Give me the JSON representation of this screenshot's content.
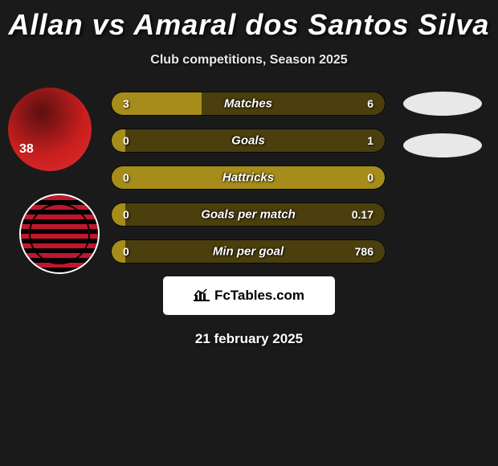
{
  "title": "Allan vs Amaral dos Santos Silva",
  "subtitle": "Club competitions, Season 2025",
  "date": "21 february 2025",
  "badge_text": "FcTables.com",
  "avatar1_number": "38",
  "colors": {
    "color_left": "#a68c1a",
    "color_right": "#4a3f0d",
    "background": "#1a1a1a"
  },
  "stats": [
    {
      "label": "Matches",
      "left_val": "3",
      "right_val": "6",
      "left_pct": 33
    },
    {
      "label": "Goals",
      "left_val": "0",
      "right_val": "1",
      "left_pct": 5
    },
    {
      "label": "Hattricks",
      "left_val": "0",
      "right_val": "0",
      "left_pct": 100
    },
    {
      "label": "Goals per match",
      "left_val": "0",
      "right_val": "0.17",
      "left_pct": 5
    },
    {
      "label": "Min per goal",
      "left_val": "0",
      "right_val": "786",
      "left_pct": 5
    }
  ]
}
